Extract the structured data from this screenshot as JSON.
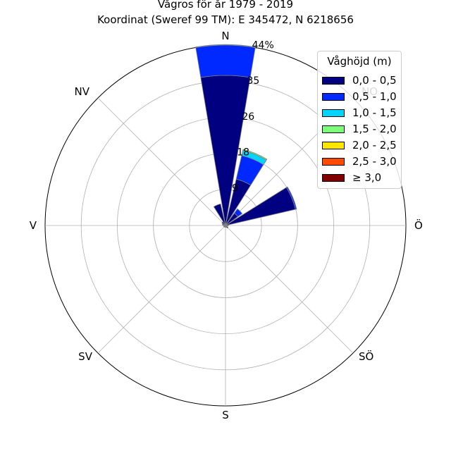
{
  "chart_data": {
    "type": "polar-bar",
    "title": "Vågros för år 1979 - 2019",
    "subtitle": "Koordinat (Sweref 99 TM): E 345472, N 6218656",
    "directions": [
      "N",
      "NO",
      "Ö",
      "SÖ",
      "S",
      "SV",
      "V",
      "NV"
    ],
    "radial_ticks": [
      "9",
      "18",
      "26",
      "35",
      "44%"
    ],
    "r_max_percent": 44,
    "legend_title": "Våghöjd (m)",
    "series": [
      {
        "name": "0,0 - 0,5",
        "color": "#000080"
      },
      {
        "name": "0,5 - 1,0",
        "color": "#0029ff"
      },
      {
        "name": "1,0 - 1,5",
        "color": "#00d4ff"
      },
      {
        "name": "1,5 - 2,0",
        "color": "#7dff7a"
      },
      {
        "name": "2,0 - 2,5",
        "color": "#ffe600"
      },
      {
        "name": "2,5 - 3,0",
        "color": "#ff4a00"
      },
      {
        "name": "≥ 3,0",
        "color": "#800000"
      }
    ],
    "sectors": [
      {
        "dir_deg": 0,
        "values": [
          36.6,
          7.4,
          0.15,
          0,
          0,
          0,
          0
        ]
      },
      {
        "dir_deg": 22.5,
        "values": [
          11.6,
          5.9,
          1.3,
          0.25,
          0,
          0,
          0
        ]
      },
      {
        "dir_deg": 45,
        "values": [
          3.7,
          1.3,
          0,
          0,
          0,
          0,
          0
        ]
      },
      {
        "dir_deg": 67.5,
        "values": [
          17.5,
          0.3,
          0,
          0,
          0,
          0,
          0
        ]
      },
      {
        "dir_deg": 90,
        "values": [
          0.7,
          0,
          0,
          0,
          0,
          0,
          0
        ]
      },
      {
        "dir_deg": 112.5,
        "values": [
          0.5,
          0,
          0,
          0,
          0,
          0,
          0
        ]
      },
      {
        "dir_deg": 135,
        "values": [
          0.8,
          0,
          0,
          0,
          0,
          0,
          0
        ]
      },
      {
        "dir_deg": 157.5,
        "values": [
          0.5,
          0,
          0,
          0,
          0,
          0,
          0
        ]
      },
      {
        "dir_deg": 180,
        "values": [
          0.4,
          0,
          0,
          0,
          0,
          0,
          0
        ]
      },
      {
        "dir_deg": 202.5,
        "values": [
          0.4,
          0,
          0,
          0,
          0,
          0,
          0
        ]
      },
      {
        "dir_deg": 225,
        "values": [
          0.5,
          0,
          0,
          0,
          0,
          0,
          0
        ]
      },
      {
        "dir_deg": 247.5,
        "values": [
          0.5,
          0,
          0,
          0,
          0,
          0,
          0
        ]
      },
      {
        "dir_deg": 270,
        "values": [
          0.5,
          0,
          0,
          0,
          0,
          0,
          0
        ]
      },
      {
        "dir_deg": 292.5,
        "values": [
          0.8,
          0,
          0,
          0,
          0,
          0,
          0
        ]
      },
      {
        "dir_deg": 315,
        "values": [
          1.1,
          0,
          0,
          0,
          0,
          0,
          0
        ]
      },
      {
        "dir_deg": 337.5,
        "values": [
          5.4,
          0,
          0,
          0,
          0,
          0,
          0
        ]
      }
    ],
    "grid": true,
    "legend_placement": "top-right"
  }
}
